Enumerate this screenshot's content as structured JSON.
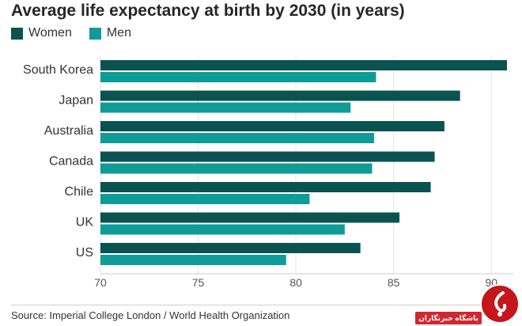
{
  "chart_data": {
    "type": "bar",
    "orientation": "horizontal",
    "title": "Average life expectancy at birth by 2030 (in years)",
    "categories": [
      "South Korea",
      "Japan",
      "Australia",
      "Canada",
      "Chile",
      "UK",
      "US"
    ],
    "series": [
      {
        "name": "Women",
        "color": "#0b5350",
        "values": [
          90.8,
          88.4,
          87.6,
          87.1,
          86.9,
          85.3,
          83.3
        ]
      },
      {
        "name": "Men",
        "color": "#0f9b97",
        "values": [
          84.1,
          82.8,
          84.0,
          83.9,
          80.7,
          82.5,
          79.5
        ]
      }
    ],
    "xlim": [
      70,
      90.8
    ],
    "xticks": [
      70,
      75,
      80,
      85,
      90
    ],
    "grid": true,
    "legend_position": "top-left"
  },
  "source": "Source: Imperial College London / World Health Organization",
  "watermark": {
    "text": "باشگاه خبرنگاران",
    "logo_icon": "ybc-logo-icon"
  }
}
